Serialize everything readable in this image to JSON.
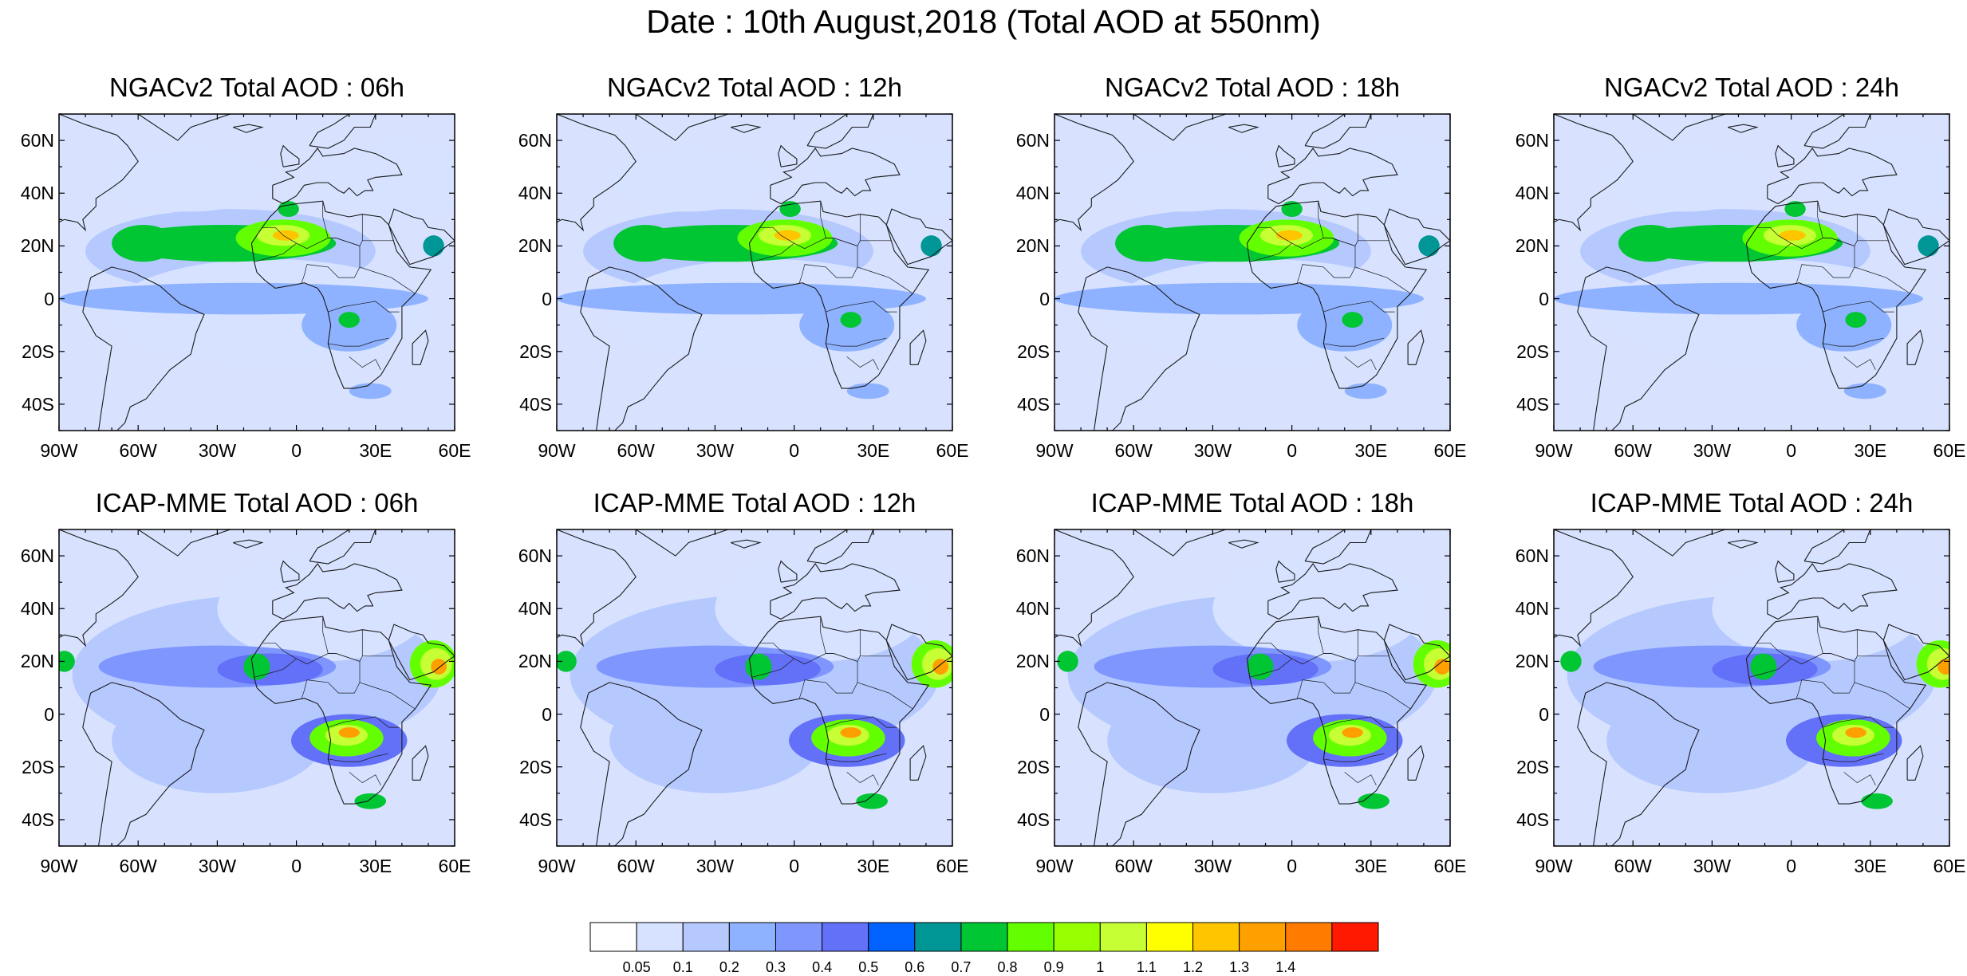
{
  "title": "Date : 10th August,2018 (Total AOD at 550nm)",
  "lat_labels": [
    "60N",
    "40N",
    "20N",
    "0",
    "20S",
    "40S"
  ],
  "lon_labels": [
    "90W",
    "60W",
    "30W",
    "0",
    "30E",
    "60E"
  ],
  "panels": [
    {
      "title": "NGACv2 Total AOD : 06h",
      "model": "NGACv2",
      "hour": "06h"
    },
    {
      "title": "NGACv2 Total AOD : 12h",
      "model": "NGACv2",
      "hour": "12h"
    },
    {
      "title": "NGACv2 Total AOD : 18h",
      "model": "NGACv2",
      "hour": "18h"
    },
    {
      "title": "NGACv2 Total AOD : 24h",
      "model": "NGACv2",
      "hour": "24h"
    },
    {
      "title": "ICAP-MME Total AOD : 06h",
      "model": "ICAP-MME",
      "hour": "06h"
    },
    {
      "title": "ICAP-MME Total AOD : 12h",
      "model": "ICAP-MME",
      "hour": "12h"
    },
    {
      "title": "ICAP-MME Total AOD : 18h",
      "model": "ICAP-MME",
      "hour": "18h"
    },
    {
      "title": "ICAP-MME Total AOD : 24h",
      "model": "ICAP-MME",
      "hour": "24h"
    }
  ],
  "colorbar": {
    "labels": [
      "0.05",
      "0.1",
      "0.2",
      "0.3",
      "0.4",
      "0.5",
      "0.6",
      "0.7",
      "0.8",
      "0.9",
      "1",
      "1.1",
      "1.2",
      "1.3",
      "1.4"
    ],
    "colors": [
      "#ffffff",
      "#d6e2ff",
      "#b5c9ff",
      "#8eb2ff",
      "#7f96ff",
      "#6370f8",
      "#0063ff",
      "#009696",
      "#00c633",
      "#63ff00",
      "#96ff00",
      "#c6ff33",
      "#ffff00",
      "#ffc600",
      "#ffa000",
      "#ff7c00",
      "#ff1900"
    ]
  },
  "colors": {
    "ocean_background": "#d8e2ff",
    "land_background": "#ffffff",
    "coastline": "#1a1a1a",
    "frame": "#000000"
  }
}
